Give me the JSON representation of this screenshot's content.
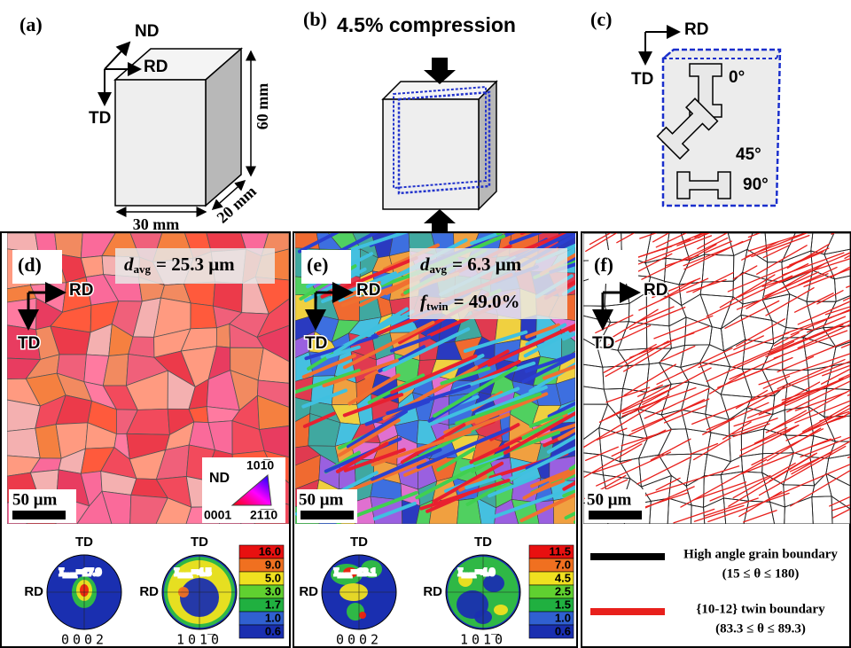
{
  "panels": {
    "a": {
      "label": "(a)",
      "axes": {
        "nd": "ND",
        "rd": "RD",
        "td": "TD"
      },
      "dimensions": [
        "60 mm",
        "30 mm",
        "20 mm"
      ]
    },
    "b": {
      "label": "(b)",
      "title": "4.5% compression"
    },
    "c": {
      "label": "(c)",
      "axes": {
        "rd": "RD",
        "td": "TD"
      },
      "angles": [
        "0°",
        "45°",
        "90°"
      ]
    },
    "d": {
      "label": "(d)",
      "grain_size": {
        "symbol": "d",
        "subscript": "avg",
        "text": "= 25.3 μm"
      },
      "axes": {
        "rd": "RD",
        "td": "TD"
      },
      "scale_bar": "50 μm",
      "ipf_key": {
        "normal": "ND",
        "corners": [
          "101̅0",
          "0001",
          "21̅1̅0"
        ]
      },
      "pole_figures": [
        {
          "top": "TD",
          "left": "RD",
          "imax": {
            "symbol": "I",
            "subscript": "max",
            "text": "=17.9"
          },
          "plane": "0002"
        },
        {
          "top": "TD",
          "left": "RD",
          "imax": {
            "symbol": "I",
            "subscript": "max",
            "text": "=4.5"
          },
          "plane": "101̅0"
        }
      ],
      "colorbar": [
        "16.0",
        "9.0",
        "5.0",
        "3.0",
        "1.7",
        "1.0",
        "0.6"
      ]
    },
    "e": {
      "label": "(e)",
      "grain_size": {
        "symbol": "d",
        "subscript": "avg",
        "text": "= 6.3 μm"
      },
      "twin_fraction": {
        "symbol": "f",
        "subscript": "twin",
        "text": "= 49.0%"
      },
      "axes": {
        "rd": "RD",
        "td": "TD"
      },
      "scale_bar": "50 μm",
      "pole_figures": [
        {
          "top": "TD",
          "left": "RD",
          "imax": {
            "symbol": "I",
            "subscript": "max",
            "text": "=13.1"
          },
          "plane": "0002"
        },
        {
          "top": "TD",
          "left": "RD",
          "imax": {
            "symbol": "I",
            "subscript": "max",
            "text": "=4.0"
          },
          "plane": "101̅0"
        }
      ],
      "colorbar": [
        "11.5",
        "7.0",
        "4.5",
        "2.5",
        "1.5",
        "1.0",
        "0.6"
      ]
    },
    "f": {
      "label": "(f)",
      "axes": {
        "rd": "RD",
        "td": "TD"
      },
      "scale_bar": "50 μm",
      "legend": [
        {
          "name": "High angle grain boundary",
          "range": "(15 ≤ θ ≤ 180)"
        },
        {
          "name": "{10-12} twin boundary",
          "range": "(83.3 ≤ θ ≤ 89.3)"
        }
      ]
    }
  }
}
